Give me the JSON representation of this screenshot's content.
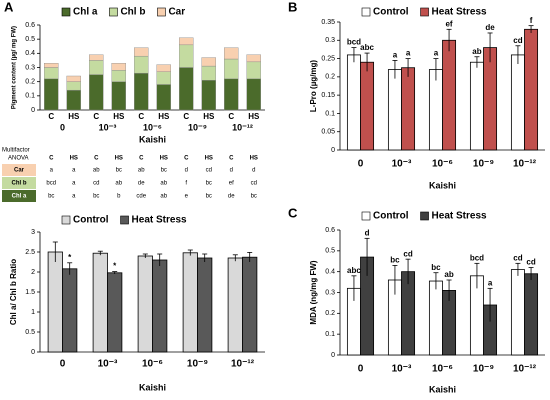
{
  "chart_data": [
    {
      "type": "stacked_bar",
      "panel": "A",
      "ylabel": "Pigment content (µg/ mg FW)",
      "xlabel": "Kaishi",
      "categories": [
        "C",
        "HS",
        "C",
        "HS",
        "C",
        "HS",
        "C",
        "HS",
        "C",
        "HS"
      ],
      "groups": [
        "0",
        "10⁻³",
        "10⁻⁶",
        "10⁻⁹",
        "10⁻¹²"
      ],
      "ylim": [
        0,
        0.6
      ],
      "yticks": [
        0,
        0.1,
        0.2,
        0.3,
        0.4,
        0.5,
        0.6
      ],
      "series": [
        {
          "name": "Chl a",
          "color": "#4b6b2b",
          "values": [
            0.22,
            0.14,
            0.25,
            0.2,
            0.26,
            0.18,
            0.3,
            0.21,
            0.22,
            0.22
          ]
        },
        {
          "name": "Chl b",
          "color": "#c4dba0",
          "values": [
            0.08,
            0.06,
            0.1,
            0.08,
            0.12,
            0.09,
            0.16,
            0.1,
            0.14,
            0.12
          ]
        },
        {
          "name": "Car",
          "color": "#f8d0b0",
          "values": [
            0.03,
            0.04,
            0.04,
            0.05,
            0.06,
            0.05,
            0.05,
            0.06,
            0.08,
            0.05
          ]
        }
      ]
    },
    {
      "type": "bar",
      "ylabel": "Chl a/ Chl b Ratio",
      "xlabel": "Kaishi",
      "categories": [
        "0",
        "10⁻³",
        "10⁻⁶",
        "10⁻⁹",
        "10⁻¹²"
      ],
      "ylim": [
        0,
        3
      ],
      "yticks": [
        0,
        0.5,
        1,
        1.5,
        2,
        2.5,
        3
      ],
      "series": [
        {
          "name": "Control",
          "color": "#d9d9d9",
          "values": [
            2.5,
            2.47,
            2.4,
            2.48,
            2.35
          ],
          "errors": [
            0.25,
            0.05,
            0.05,
            0.07,
            0.08
          ],
          "labels": [
            null,
            null,
            null,
            null,
            null
          ]
        },
        {
          "name": "Heat Stress",
          "color": "#595959",
          "values": [
            2.08,
            1.98,
            2.3,
            2.35,
            2.37
          ],
          "errors": [
            0.15,
            0.03,
            0.15,
            0.1,
            0.12
          ],
          "labels": [
            "*",
            "*",
            null,
            null,
            null
          ]
        }
      ]
    },
    {
      "type": "bar",
      "panel": "B",
      "ylabel": "L-Pro (µg/mg)",
      "xlabel": "Kaishi",
      "categories": [
        "0",
        "10⁻³",
        "10⁻⁶",
        "10⁻⁹",
        "10⁻¹²"
      ],
      "ylim": [
        0,
        0.35
      ],
      "yticks": [
        0,
        0.05,
        0.1,
        0.15,
        0.2,
        0.25,
        0.3,
        0.35
      ],
      "series": [
        {
          "name": "Control",
          "color": "#ffffff",
          "values": [
            0.26,
            0.22,
            0.22,
            0.24,
            0.26
          ],
          "errors": [
            0.02,
            0.025,
            0.03,
            0.015,
            0.025
          ],
          "labels": [
            "bcd",
            "a",
            "a",
            "ab",
            "cd"
          ]
        },
        {
          "name": "Heat Stress",
          "color": "#c0504d",
          "values": [
            0.24,
            0.225,
            0.3,
            0.28,
            0.33
          ],
          "errors": [
            0.025,
            0.025,
            0.03,
            0.04,
            0.01
          ],
          "labels": [
            "abc",
            "a",
            "ef",
            "de",
            "f"
          ]
        }
      ]
    },
    {
      "type": "bar",
      "panel": "C",
      "ylabel": "MDA (ng/mg FW)",
      "xlabel": "Kaishi",
      "categories": [
        "0",
        "10⁻³",
        "10⁻⁶",
        "10⁻⁹",
        "10⁻¹²"
      ],
      "ylim": [
        0,
        0.6
      ],
      "yticks": [
        0,
        0.1,
        0.2,
        0.3,
        0.4,
        0.5,
        0.6
      ],
      "series": [
        {
          "name": "Control",
          "color": "#ffffff",
          "values": [
            0.32,
            0.36,
            0.355,
            0.38,
            0.41
          ],
          "errors": [
            0.06,
            0.07,
            0.04,
            0.06,
            0.03
          ],
          "labels": [
            "abc",
            "bc",
            "bc",
            "bcd",
            "cd"
          ]
        },
        {
          "name": "Heat Stress",
          "color": "#404040",
          "values": [
            0.47,
            0.4,
            0.31,
            0.24,
            0.39
          ],
          "errors": [
            0.09,
            0.06,
            0.05,
            0.08,
            0.03
          ],
          "labels": [
            "d",
            "cd",
            "ab",
            "a",
            "cd"
          ]
        }
      ]
    }
  ],
  "table": {
    "title": [
      "Multifactor",
      "ANOVA"
    ],
    "header": [
      "C",
      "HS",
      "C",
      "HS",
      "C",
      "HS",
      "C",
      "HS",
      "C",
      "HS"
    ],
    "rows": [
      {
        "label": "Car",
        "cells": [
          "a",
          "a",
          "ab",
          "bc",
          "ab",
          "bc",
          "d",
          "cd",
          "d",
          "d"
        ]
      },
      {
        "label": "Chl b",
        "cells": [
          "bcd",
          "a",
          "cd",
          "ab",
          "de",
          "ab",
          "f",
          "bc",
          "ef",
          "cd"
        ]
      },
      {
        "label": "Chl a",
        "cells": [
          "bc",
          "a",
          "bc",
          "b",
          "cde",
          "ab",
          "e",
          "bc",
          "de",
          "bc"
        ]
      }
    ]
  }
}
